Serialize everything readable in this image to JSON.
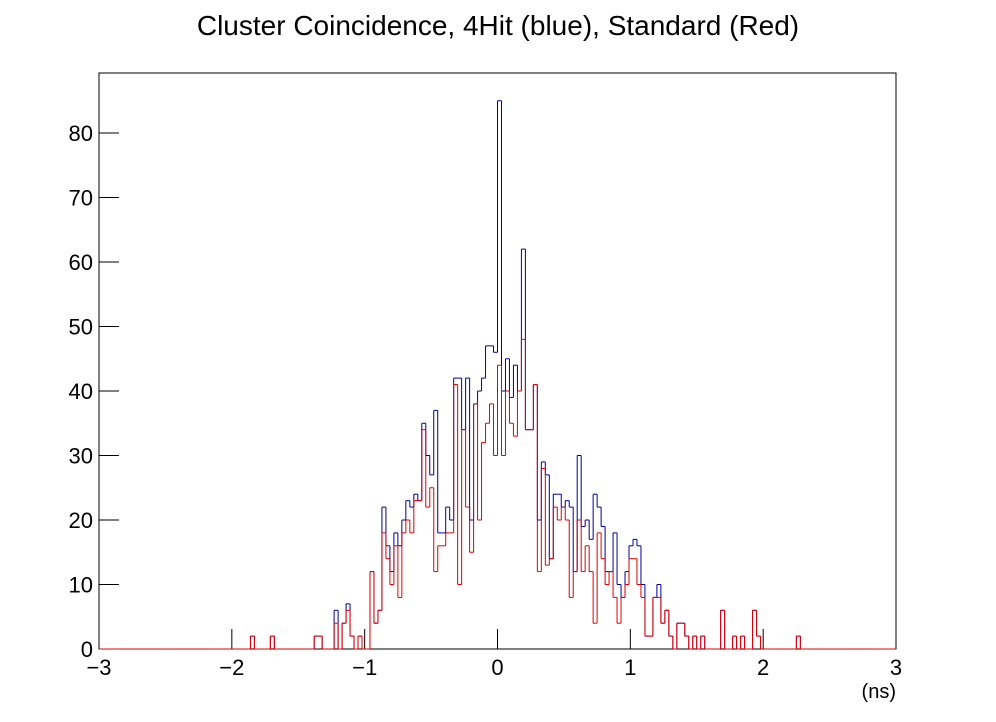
{
  "chart_data": {
    "type": "histogram",
    "title": "Cluster Coincidence, 4Hit (blue), Standard (Red)",
    "x_label": "(ns)",
    "bins": [
      -3,
      -2.97,
      -2.94,
      -2.91,
      -2.88,
      -2.85,
      -2.82,
      -2.79,
      -2.76,
      -2.73,
      -2.7,
      -2.67,
      -2.64,
      -2.61,
      -2.58,
      -2.55,
      -2.52,
      -2.49,
      -2.46,
      -2.43,
      -2.4,
      -2.37,
      -2.34,
      -2.31,
      -2.28,
      -2.25,
      -2.22,
      -2.19,
      -2.16,
      -2.13,
      -2.1,
      -2.07,
      -2.04,
      -2.01,
      -1.98,
      -1.95,
      -1.92,
      -1.89,
      -1.86,
      -1.83,
      -1.8,
      -1.77,
      -1.74,
      -1.71,
      -1.68,
      -1.65,
      -1.62,
      -1.59,
      -1.56,
      -1.53,
      -1.5,
      -1.47,
      -1.44,
      -1.41,
      -1.38,
      -1.35,
      -1.32,
      -1.29,
      -1.26,
      -1.23,
      -1.2,
      -1.17,
      -1.14,
      -1.11,
      -1.08,
      -1.05,
      -1.02,
      -0.99,
      -0.96,
      -0.93,
      -0.9,
      -0.87,
      -0.84,
      -0.81,
      -0.78,
      -0.75,
      -0.72,
      -0.69,
      -0.66,
      -0.63,
      -0.6,
      -0.57,
      -0.54,
      -0.51,
      -0.48,
      -0.45,
      -0.42,
      -0.39,
      -0.36,
      -0.33,
      -0.3,
      -0.27,
      -0.24,
      -0.21,
      -0.18,
      -0.15,
      -0.12,
      -0.09,
      -0.06,
      -0.03,
      0,
      0.03,
      0.06,
      0.09,
      0.12,
      0.15,
      0.18,
      0.21,
      0.24,
      0.27,
      0.3,
      0.33,
      0.36,
      0.39,
      0.42,
      0.45,
      0.48,
      0.51,
      0.54,
      0.57,
      0.6,
      0.63,
      0.66,
      0.69,
      0.72,
      0.75,
      0.78,
      0.81,
      0.84,
      0.87,
      0.9,
      0.93,
      0.96,
      0.99,
      1.02,
      1.05,
      1.08,
      1.11,
      1.14,
      1.17,
      1.2,
      1.23,
      1.26,
      1.29,
      1.32,
      1.35,
      1.38,
      1.41,
      1.44,
      1.47,
      1.5,
      1.53,
      1.56,
      1.59,
      1.62,
      1.65,
      1.68,
      1.71,
      1.74,
      1.77,
      1.8,
      1.83,
      1.86,
      1.89,
      1.92,
      1.95,
      1.98,
      2.01,
      2.04,
      2.07,
      2.1,
      2.13,
      2.16,
      2.19,
      2.22,
      2.25,
      2.28,
      2.31,
      2.34,
      2.37,
      2.4,
      2.43,
      2.46,
      2.49,
      2.52,
      2.55,
      2.58,
      2.61,
      2.64,
      2.67,
      2.7,
      2.73,
      2.76,
      2.79,
      2.82,
      2.85,
      2.88,
      2.91,
      2.94,
      2.97,
      3
    ],
    "series": [
      {
        "color": "#000099",
        "values": [
          0,
          0,
          0,
          0,
          0,
          0,
          0,
          0,
          0,
          0,
          0,
          0,
          0,
          0,
          0,
          0,
          0,
          0,
          0,
          0,
          0,
          0,
          0,
          0,
          0,
          0,
          0,
          0,
          0,
          0,
          0,
          0,
          0,
          0,
          0,
          0,
          0,
          0,
          2,
          0,
          0,
          0,
          0,
          2,
          0,
          0,
          0,
          0,
          0,
          0,
          0,
          0,
          0,
          0,
          2,
          2,
          0,
          0,
          0,
          6,
          0,
          4,
          7,
          2,
          0,
          2,
          0,
          0,
          12,
          4,
          6,
          22,
          16,
          12,
          18,
          16,
          20,
          23,
          22,
          24,
          23,
          35,
          30,
          27,
          37,
          18,
          18,
          22,
          20,
          42,
          42,
          34,
          42,
          20,
          38,
          40,
          42,
          47,
          47,
          46,
          85,
          40,
          45,
          39,
          44,
          40,
          62,
          34,
          34,
          41,
          20,
          29,
          27,
          14,
          24,
          24,
          22,
          23,
          22,
          12,
          30,
          19,
          20,
          17,
          24,
          22,
          19,
          12,
          12,
          18,
          10,
          8,
          12,
          16,
          17,
          16,
          10,
          2,
          2,
          8,
          10,
          4,
          6,
          2,
          0,
          4,
          4,
          2,
          0,
          2,
          0,
          2,
          0,
          0,
          0,
          0,
          6,
          0,
          0,
          2,
          0,
          2,
          0,
          0,
          6,
          2,
          0,
          0,
          0,
          0,
          0,
          0,
          0,
          0,
          0,
          2,
          0,
          0,
          0,
          0,
          0,
          0,
          0,
          0,
          0,
          0,
          0,
          0,
          0,
          0,
          0,
          0,
          0,
          0,
          0,
          0,
          0,
          0,
          0,
          0
        ]
      },
      {
        "color": "#e00000",
        "values": [
          0,
          0,
          0,
          0,
          0,
          0,
          0,
          0,
          0,
          0,
          0,
          0,
          0,
          0,
          0,
          0,
          0,
          0,
          0,
          0,
          0,
          0,
          0,
          0,
          0,
          0,
          0,
          0,
          0,
          0,
          0,
          0,
          0,
          0,
          0,
          0,
          0,
          0,
          2,
          0,
          0,
          0,
          0,
          2,
          0,
          0,
          0,
          0,
          0,
          0,
          0,
          0,
          0,
          0,
          2,
          2,
          0,
          0,
          0,
          4,
          0,
          4,
          6,
          2,
          0,
          2,
          0,
          0,
          12,
          4,
          6,
          18,
          14,
          10,
          16,
          8,
          18,
          20,
          18,
          23,
          23,
          34,
          22,
          25,
          12,
          16,
          16,
          18,
          18,
          41,
          10,
          34,
          22,
          15,
          38,
          20,
          32,
          35,
          38,
          30,
          44,
          30,
          40,
          35,
          33,
          40,
          48,
          34,
          34,
          41,
          12,
          28,
          13,
          14,
          22,
          20,
          22,
          20,
          8,
          12,
          20,
          12,
          16,
          12,
          4,
          18,
          14,
          10,
          12,
          8,
          4,
          8,
          10,
          14,
          14,
          10,
          8,
          2,
          2,
          8,
          8,
          4,
          6,
          2,
          0,
          4,
          4,
          2,
          0,
          2,
          0,
          2,
          0,
          0,
          0,
          0,
          6,
          0,
          0,
          2,
          0,
          2,
          0,
          0,
          6,
          2,
          0,
          0,
          0,
          0,
          0,
          0,
          0,
          0,
          0,
          2,
          0,
          0,
          0,
          0,
          0,
          0,
          0,
          0,
          0,
          0,
          0,
          0,
          0,
          0,
          0,
          0,
          0,
          0,
          0,
          0,
          0,
          0,
          0,
          0
        ]
      }
    ],
    "xlim": [
      -3,
      3
    ],
    "xticks": [
      {
        "value": -3,
        "label": "−3"
      },
      {
        "value": -2,
        "label": "−2"
      },
      {
        "value": -1,
        "label": "−1"
      },
      0,
      1,
      2,
      3
    ],
    "ylim": [
      0,
      89.3
    ],
    "yticks": [
      0,
      10,
      20,
      30,
      40,
      50,
      60,
      70,
      80
    ]
  }
}
